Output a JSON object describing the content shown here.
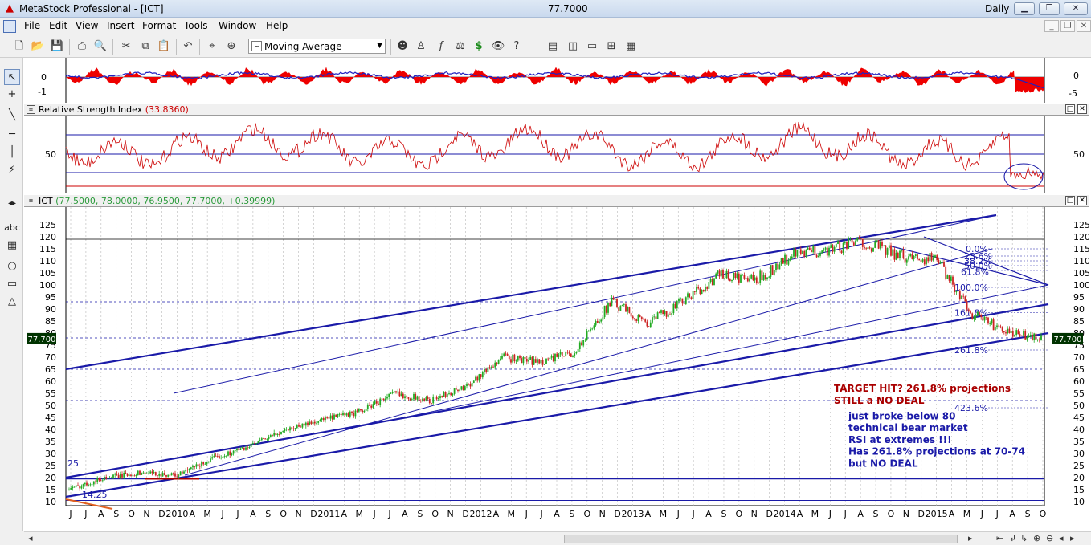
{
  "window": {
    "app_title": "MetaStock Professional - [ICT]",
    "price_readout": "77.7000",
    "period": "Daily"
  },
  "menu": [
    "File",
    "Edit",
    "View",
    "Insert",
    "Format",
    "Tools",
    "Window",
    "Help"
  ],
  "toolbar": {
    "indicator_select": "Moving Average"
  },
  "panes": {
    "macd": {
      "ticks_left": [
        "0",
        "-1"
      ],
      "ticks_right": [
        "0",
        "-5"
      ]
    },
    "rsi": {
      "title": "Relative Strength Index",
      "value": "(33.8360)",
      "tick_left": "50",
      "tick_right": "50"
    },
    "price": {
      "symbol": "ICT",
      "ohlc": "(77.5000, 78.0000, 76.9500, 77.7000, +0.39999)",
      "last_label": "77.700",
      "y_ticks": [
        10,
        15,
        20,
        25,
        30,
        35,
        40,
        45,
        50,
        55,
        60,
        65,
        70,
        75,
        80,
        85,
        90,
        95,
        100,
        105,
        110,
        115,
        120,
        125
      ]
    }
  },
  "fib_labels": {
    "l0": "0.0%",
    "l1": "23.6%",
    "l2": "38.2%",
    "l3": "50.0%",
    "l4": "61.8%",
    "l5": "100.0%",
    "l6": "161.8%",
    "l7": "261.8%",
    "l8": "423.6%"
  },
  "annotations": {
    "target_line1": "TARGET HIT? 261.8% projections",
    "target_line2": "STILL a NO DEAL",
    "note_lines": [
      "just broke below 80",
      "technical bear market",
      "RSI at extremes !!!",
      "Has 261.8% projections at 70-74",
      "but NO DEAL"
    ],
    "start_label": "25",
    "low_label": "14.25"
  },
  "x_axis": {
    "labels": [
      "J",
      "J",
      "A",
      "S",
      "O",
      "N",
      "D",
      "2010",
      "A",
      "M",
      "J",
      "J",
      "A",
      "S",
      "O",
      "N",
      "D",
      "2011",
      "A",
      "M",
      "J",
      "J",
      "A",
      "S",
      "O",
      "N",
      "D",
      "2012",
      "A",
      "M",
      "J",
      "J",
      "A",
      "S",
      "O",
      "N",
      "D",
      "2013",
      "A",
      "M",
      "J",
      "J",
      "A",
      "S",
      "O",
      "N",
      "D",
      "2014",
      "A",
      "M",
      "J",
      "J",
      "A",
      "S",
      "O",
      "N",
      "D",
      "2015",
      "A",
      "M",
      "J",
      "J",
      "A",
      "S",
      "O"
    ]
  },
  "colors": {
    "price_up": "#22aa22",
    "price_down": "#cc2222",
    "trendline": "#1a1aa8",
    "rsi_line": "#cc0000",
    "macd_fill": "#ee0000",
    "signal_line": "#2020c0",
    "last_price_badge": "#003300"
  },
  "chart_data": {
    "type": "line",
    "x": [
      "2009-06",
      "2009-09",
      "2009-12",
      "2010-03",
      "2010-06",
      "2010-09",
      "2010-12",
      "2011-03",
      "2011-06",
      "2011-09",
      "2011-12",
      "2012-03",
      "2012-06",
      "2012-09",
      "2012-12",
      "2013-03",
      "2013-06",
      "2013-09",
      "2013-12",
      "2014-03",
      "2014-06",
      "2014-09",
      "2014-12",
      "2015-03",
      "2015-06",
      "2015-08",
      "2015-09",
      "2015-10"
    ],
    "series": [
      {
        "values": [
          15,
          20,
          22,
          21,
          28,
          33,
          40,
          44,
          47,
          55,
          52,
          58,
          70,
          68,
          72,
          93,
          84,
          93,
          104,
          102,
          112,
          115,
          118,
          112,
          111,
          88,
          80,
          77.7
        ]
      }
    ],
    "ylim": [
      7,
      128
    ]
  }
}
